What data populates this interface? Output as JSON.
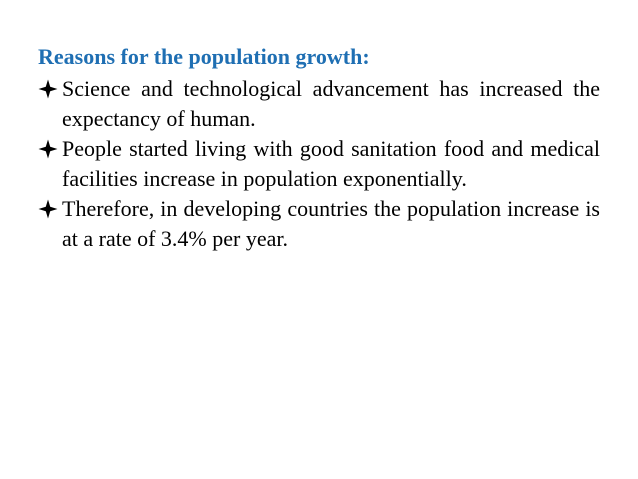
{
  "slide": {
    "heading": "Reasons for the population growth:",
    "bullets": [
      {
        "icon": "diamond-bullet-icon",
        "text": "Science and technological advancement has increased the expectancy of human."
      },
      {
        "icon": "diamond-bullet-icon",
        "text": "People started living with good sanitation food and medical facilities increase in population exponentially."
      },
      {
        "icon": "diamond-bullet-icon",
        "text": "Therefore, in developing countries the population increase is at a rate of 3.4% per year."
      }
    ]
  },
  "colors": {
    "heading": "#1f6fb3",
    "body_text": "#000000",
    "background": "#ffffff"
  }
}
